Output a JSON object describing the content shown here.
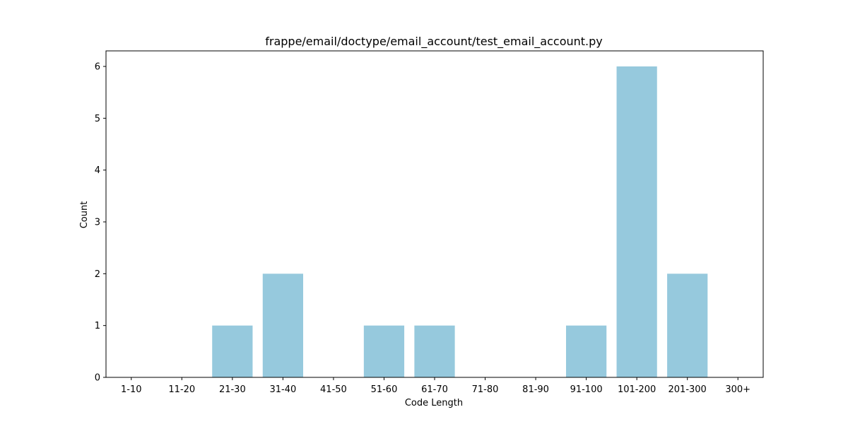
{
  "chart_data": {
    "type": "bar",
    "title": "frappe/email/doctype/email_account/test_email_account.py",
    "xlabel": "Code Length",
    "ylabel": "Count",
    "categories": [
      "1-10",
      "11-20",
      "21-30",
      "31-40",
      "41-50",
      "51-60",
      "61-70",
      "71-80",
      "81-90",
      "91-100",
      "101-200",
      "201-300",
      "300+"
    ],
    "values": [
      0,
      0,
      1,
      2,
      0,
      1,
      1,
      0,
      0,
      1,
      6,
      2,
      0
    ],
    "ylim": [
      0,
      6.3
    ],
    "yticks": [
      0,
      1,
      2,
      3,
      4,
      5,
      6
    ],
    "bar_color": "#96c9dd",
    "grid": false,
    "legend": "none"
  }
}
